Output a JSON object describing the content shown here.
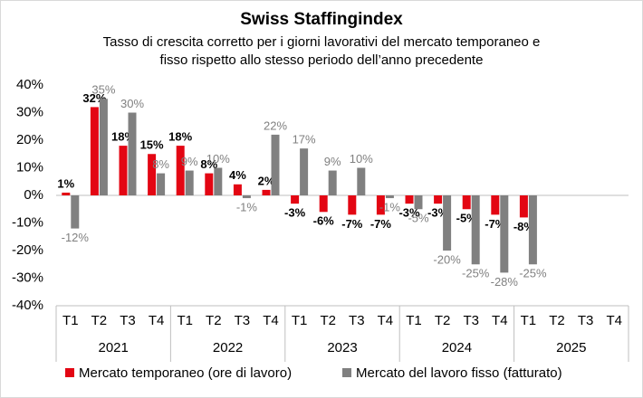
{
  "chart_data": {
    "type": "bar",
    "title": "Swiss Staffingindex",
    "subtitle": [
      "Tasso di crescita corretto per i giorni lavorativi del mercato temporaneo e",
      "fisso rispetto allo stesso periodo dell’anno precedente"
    ],
    "categories": [
      "T1",
      "T2",
      "T3",
      "T4",
      "T1",
      "T2",
      "T3",
      "T4",
      "T1",
      "T2",
      "T3",
      "T4",
      "T1",
      "T2",
      "T3",
      "T4",
      "T1",
      "T2",
      "T3",
      "T4"
    ],
    "groups": [
      "2021",
      "2022",
      "2023",
      "2024",
      "2025"
    ],
    "series": [
      {
        "name": "Mercato temporaneo (ore di lavoro)",
        "color": "#e30613",
        "values": [
          1,
          32,
          18,
          15,
          18,
          8,
          4,
          2,
          -3,
          -6,
          -7,
          -7,
          -3,
          -3,
          -5,
          -7,
          -8,
          null,
          null,
          null
        ],
        "value_labels": [
          "1%",
          "32%",
          "18%",
          "15%",
          "18%",
          "8%",
          "4%",
          "2%",
          "-3%",
          "-6%",
          "-7%",
          "-7%",
          "-3%",
          "-3%",
          "-5%",
          "-7%",
          "-8%",
          null,
          null,
          null
        ]
      },
      {
        "name": "Mercato del lavoro fisso (fatturato)",
        "color": "#808080",
        "values": [
          -12,
          35,
          30,
          8,
          9,
          10,
          -1,
          22,
          17,
          9,
          10,
          -1,
          -5,
          -20,
          -25,
          -28,
          -25,
          null,
          null,
          null
        ],
        "value_labels": [
          "-12%",
          "35%",
          "30%",
          "8%",
          "9%",
          "10%",
          "-1%",
          "22%",
          "17%",
          "9%",
          "10%",
          "-1%",
          "-5%",
          "-20%",
          "-25%",
          "-28%",
          "-25%",
          null,
          null,
          null
        ]
      }
    ],
    "ylim": [
      -40,
      40
    ],
    "yticks": [
      {
        "value": -40,
        "label": "-40%"
      },
      {
        "value": -30,
        "label": "-30%"
      },
      {
        "value": -20,
        "label": "-20%"
      },
      {
        "value": -10,
        "label": "-10%"
      },
      {
        "value": 0,
        "label": "0%"
      },
      {
        "value": 10,
        "label": "10%"
      },
      {
        "value": 20,
        "label": "20%"
      },
      {
        "value": 30,
        "label": "30%"
      },
      {
        "value": 40,
        "label": "40%"
      }
    ],
    "grid": false
  }
}
